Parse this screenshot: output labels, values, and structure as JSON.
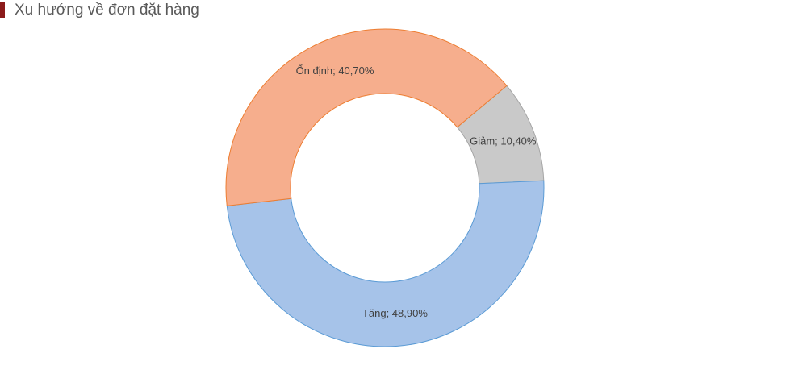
{
  "chart_data": {
    "type": "donut",
    "title": "Xu hướng về đơn đặt hàng",
    "categories_order_note_free": null,
    "values": [
      10.4,
      48.9,
      40.7
    ],
    "value_labels": [
      "Giảm; 10,40%",
      "Tăng; 48,90%",
      "Ổn định; 40,70%"
    ],
    "colors": [
      "#c9c9c9",
      "#a6c3e9",
      "#f6ae8d"
    ],
    "border_colors": [
      "#a5a5a5",
      "#5b9bd5",
      "#ed7d31"
    ]
  }
}
